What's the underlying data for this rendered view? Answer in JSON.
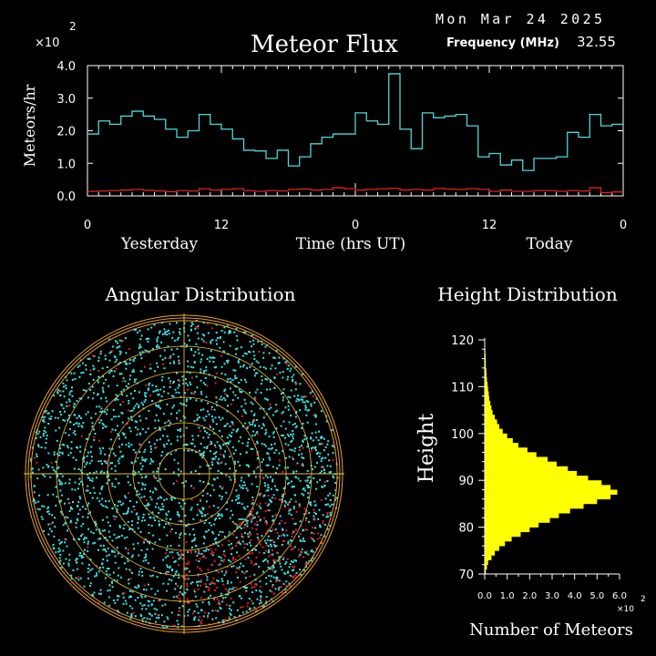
{
  "header": {
    "date": "Mon Mar 24 2025",
    "title": "Meteor Flux",
    "frequency_label": "Frequency (MHz)",
    "frequency_value": "32.55",
    "y_multiplier": "×10",
    "y_exponent": "2"
  },
  "colors": {
    "background": "#000000",
    "total": "#4fd8d8",
    "underdense": "#e02020",
    "axis": "#ffffff",
    "histogram": "#ffff00",
    "polar_rings": "#e8a030",
    "polar_cross": "#e8c040",
    "angular_meteor": "#40e0e0",
    "angular_meteor_red": "#e02020"
  },
  "chart_data": [
    {
      "type": "line",
      "step": true,
      "title": "Meteor Flux",
      "ylabel": "Meteors/hr",
      "xlabel": "Time (hrs UT)",
      "x_range": [
        0,
        48
      ],
      "ylim": [
        0,
        4.0
      ],
      "y_scale_note": "×10^2",
      "xticks": [
        0,
        12,
        24,
        36,
        48
      ],
      "xtick_labels": [
        "0",
        "12",
        "0",
        "12",
        "0"
      ],
      "yticks": [
        0.0,
        1.0,
        2.0,
        3.0,
        4.0
      ],
      "ytick_labels": [
        "0.0",
        "1.0",
        "2.0",
        "3.0",
        "4.0"
      ],
      "day_labels": [
        "Yesterday",
        "Today"
      ],
      "x": [
        0,
        1,
        2,
        3,
        4,
        5,
        6,
        7,
        8,
        9,
        10,
        11,
        12,
        13,
        14,
        15,
        16,
        17,
        18,
        19,
        20,
        21,
        22,
        23,
        24,
        25,
        26,
        27,
        28,
        29,
        30,
        31,
        32,
        33,
        34,
        35,
        36,
        37,
        38,
        39,
        40,
        41,
        42,
        43,
        44,
        45,
        46,
        47
      ],
      "series": [
        {
          "values": [
            1.9,
            2.3,
            2.2,
            2.45,
            2.6,
            2.45,
            2.35,
            2.05,
            1.8,
            2.0,
            2.5,
            2.2,
            2.05,
            1.75,
            1.4,
            1.38,
            1.15,
            1.4,
            0.92,
            1.2,
            1.6,
            1.8,
            1.9,
            1.9,
            2.55,
            2.3,
            2.2,
            3.75,
            2.05,
            1.45,
            2.55,
            2.4,
            2.45,
            2.5,
            2.15,
            1.2,
            1.3,
            0.95,
            1.1,
            0.78,
            1.15,
            1.15,
            1.2,
            1.95,
            1.8,
            2.5,
            2.15,
            2.2
          ]
        },
        {
          "values": [
            0.14,
            0.15,
            0.16,
            0.18,
            0.2,
            0.17,
            0.15,
            0.13,
            0.16,
            0.15,
            0.22,
            0.18,
            0.2,
            0.22,
            0.16,
            0.14,
            0.16,
            0.15,
            0.2,
            0.21,
            0.18,
            0.2,
            0.25,
            0.22,
            0.18,
            0.2,
            0.22,
            0.23,
            0.18,
            0.2,
            0.18,
            0.23,
            0.21,
            0.2,
            0.22,
            0.2,
            0.14,
            0.18,
            0.14,
            0.14,
            0.16,
            0.16,
            0.14,
            0.16,
            0.15,
            0.25,
            0.1,
            0.12
          ]
        }
      ]
    },
    {
      "type": "scatter",
      "title": "Angular Distribution",
      "note": "polar sky plot of meteor echo directions"
    },
    {
      "type": "bar",
      "orientation": "horizontal",
      "title": "Height Distribution",
      "ylabel": "Height",
      "xlabel": "Number of Meteors",
      "x_scale_note": "×10^2",
      "xlim": [
        0,
        6.0
      ],
      "ylim": [
        70,
        120
      ],
      "xtick_labels": [
        "0.0",
        "1.0",
        "2.0",
        "3.0",
        "4.0",
        "5.0",
        "6.0"
      ],
      "ytick_labels": [
        "70",
        "80",
        "90",
        "100",
        "110",
        "120"
      ],
      "heights": [
        70,
        71,
        72,
        73,
        74,
        75,
        76,
        77,
        78,
        79,
        80,
        81,
        82,
        83,
        84,
        85,
        86,
        87,
        88,
        89,
        90,
        91,
        92,
        93,
        94,
        95,
        96,
        97,
        98,
        99,
        100,
        101,
        102,
        103,
        104,
        105,
        106,
        107,
        108,
        109,
        110,
        111,
        112,
        113,
        114,
        115,
        116,
        117,
        118,
        119
      ],
      "values": [
        0.05,
        0.1,
        0.15,
        0.3,
        0.45,
        0.65,
        0.9,
        1.2,
        1.6,
        2.0,
        2.4,
        2.9,
        3.3,
        3.8,
        4.4,
        5.0,
        5.6,
        5.9,
        5.6,
        5.2,
        4.6,
        4.1,
        3.7,
        3.2,
        2.8,
        2.3,
        1.9,
        1.5,
        1.25,
        1.0,
        0.8,
        0.65,
        0.55,
        0.45,
        0.35,
        0.3,
        0.25,
        0.2,
        0.18,
        0.15,
        0.13,
        0.1,
        0.08,
        0.07,
        0.05,
        0.05,
        0.04,
        0.03,
        0.02,
        0.02
      ]
    }
  ]
}
